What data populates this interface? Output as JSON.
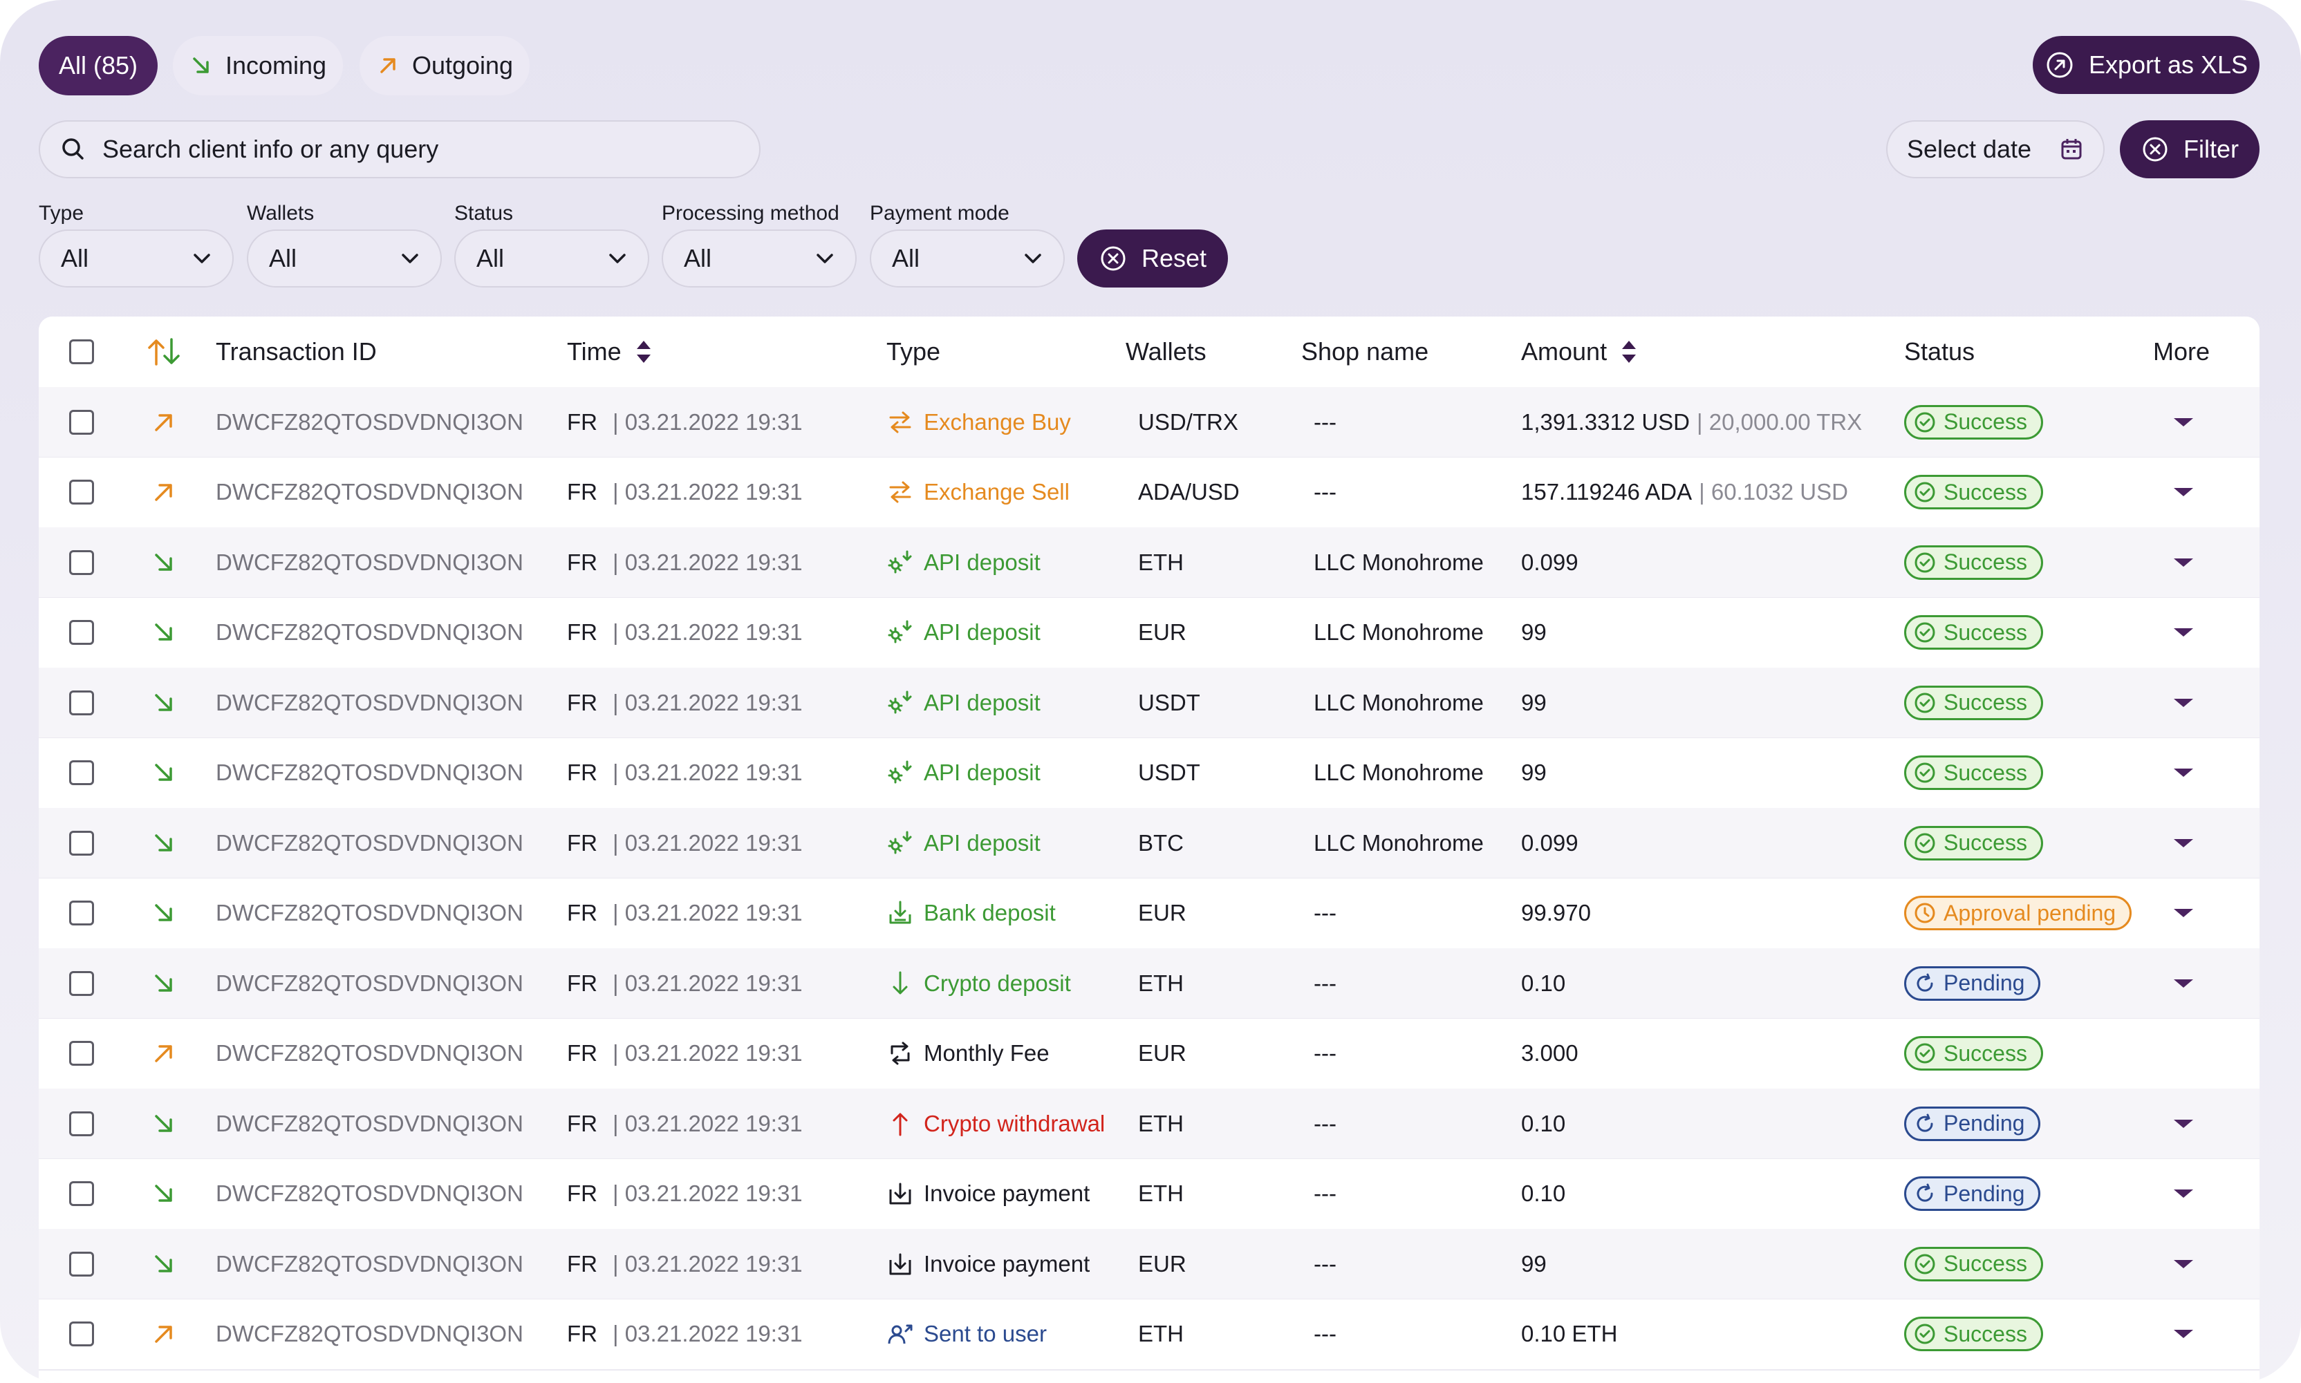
{
  "tabs": {
    "all": "All (85)",
    "incoming": "Incoming",
    "outgoing": "Outgoing"
  },
  "export_label": "Export as XLS",
  "search": {
    "placeholder": "Search client info or any query"
  },
  "date_label": "Select date",
  "filter_label": "Filter",
  "filters": [
    {
      "label": "Type",
      "value": "All"
    },
    {
      "label": "Wallets",
      "value": "All"
    },
    {
      "label": "Status",
      "value": "All"
    },
    {
      "label": "Processing method",
      "value": "All"
    },
    {
      "label": "Payment mode",
      "value": "All"
    }
  ],
  "reset_label": "Reset",
  "table": {
    "headers": {
      "transaction_id": "Transaction ID",
      "time": "Time",
      "type": "Type",
      "wallets": "Wallets",
      "shop_name": "Shop name",
      "amount": "Amount",
      "status": "Status",
      "more": "More"
    },
    "rows": [
      {
        "dir": "out",
        "txid": "DWCFZ82QTOSDVDNQI3ON",
        "country": "FR",
        "date": "| 03.21.2022 19:31",
        "type": "Exchange Buy",
        "type_icon": "exchange-icon",
        "type_color": "#e58a1f",
        "wallet": "USD/TRX",
        "shop": "---",
        "amount": "1,391.3312 USD",
        "amount_sec": "| 20,000.00 TRX",
        "status": "Success",
        "status_kind": "success",
        "more": true
      },
      {
        "dir": "out",
        "txid": "DWCFZ82QTOSDVDNQI3ON",
        "country": "FR",
        "date": "| 03.21.2022 19:31",
        "type": "Exchange Sell",
        "type_icon": "exchange-icon",
        "type_color": "#e58a1f",
        "wallet": "ADA/USD",
        "shop": "---",
        "amount": "157.119246  ADA",
        "amount_sec": "| 60.1032 USD",
        "status": "Success",
        "status_kind": "success",
        "more": true
      },
      {
        "dir": "in",
        "txid": "DWCFZ82QTOSDVDNQI3ON",
        "country": "FR",
        "date": "| 03.21.2022 19:31",
        "type": "API deposit",
        "type_icon": "api-deposit-icon",
        "type_color": "#3c9a34",
        "wallet": "ETH",
        "shop": "LLC Monohrome",
        "amount": "0.099",
        "amount_sec": "",
        "status": "Success",
        "status_kind": "success",
        "more": true
      },
      {
        "dir": "in",
        "txid": "DWCFZ82QTOSDVDNQI3ON",
        "country": "FR",
        "date": "| 03.21.2022 19:31",
        "type": "API deposit",
        "type_icon": "api-deposit-icon",
        "type_color": "#3c9a34",
        "wallet": "EUR",
        "shop": "LLC Monohrome",
        "amount": "99",
        "amount_sec": "",
        "status": "Success",
        "status_kind": "success",
        "more": true
      },
      {
        "dir": "in",
        "txid": "DWCFZ82QTOSDVDNQI3ON",
        "country": "FR",
        "date": "| 03.21.2022 19:31",
        "type": "API deposit",
        "type_icon": "api-deposit-icon",
        "type_color": "#3c9a34",
        "wallet": "USDT",
        "shop": "LLC Monohrome",
        "amount": "99",
        "amount_sec": "",
        "status": "Success",
        "status_kind": "success",
        "more": true
      },
      {
        "dir": "in",
        "txid": "DWCFZ82QTOSDVDNQI3ON",
        "country": "FR",
        "date": "| 03.21.2022 19:31",
        "type": "API deposit",
        "type_icon": "api-deposit-icon",
        "type_color": "#3c9a34",
        "wallet": "USDT",
        "shop": "LLC Monohrome",
        "amount": "99",
        "amount_sec": "",
        "status": "Success",
        "status_kind": "success",
        "more": true
      },
      {
        "dir": "in",
        "txid": "DWCFZ82QTOSDVDNQI3ON",
        "country": "FR",
        "date": "| 03.21.2022 19:31",
        "type": "API deposit",
        "type_icon": "api-deposit-icon",
        "type_color": "#3c9a34",
        "wallet": "BTC",
        "shop": "LLC Monohrome",
        "amount": "0.099",
        "amount_sec": "",
        "status": "Success",
        "status_kind": "success",
        "more": true
      },
      {
        "dir": "in",
        "txid": "DWCFZ82QTOSDVDNQI3ON",
        "country": "FR",
        "date": "| 03.21.2022 19:31",
        "type": "Bank deposit",
        "type_icon": "bank-deposit-icon",
        "type_color": "#3c9a34",
        "wallet": "EUR",
        "shop": "---",
        "amount": "99.970",
        "amount_sec": "",
        "status": "Approval pending",
        "status_kind": "approval",
        "more": true
      },
      {
        "dir": "in",
        "txid": "DWCFZ82QTOSDVDNQI3ON",
        "country": "FR",
        "date": "| 03.21.2022 19:31",
        "type": "Crypto deposit",
        "type_icon": "arrow-down-icon",
        "type_color": "#3c9a34",
        "wallet": "ETH",
        "shop": "---",
        "amount": "0.10",
        "amount_sec": "",
        "status": "Pending",
        "status_kind": "pending",
        "more": true
      },
      {
        "dir": "out",
        "txid": "DWCFZ82QTOSDVDNQI3ON",
        "country": "FR",
        "date": "| 03.21.2022 19:31",
        "type": "Monthly Fee",
        "type_icon": "repeat-icon",
        "type_color": "#1b1b23",
        "wallet": "EUR",
        "shop": "---",
        "amount": "3.000",
        "amount_sec": "",
        "status": "Success",
        "status_kind": "success",
        "more": false
      },
      {
        "dir": "in",
        "txid": "DWCFZ82QTOSDVDNQI3ON",
        "country": "FR",
        "date": "| 03.21.2022 19:31",
        "type": "Crypto withdrawal",
        "type_icon": "arrow-up-icon",
        "type_color": "#d2241c",
        "wallet": "ETH",
        "shop": "---",
        "amount": "0.10",
        "amount_sec": "",
        "status": "Pending",
        "status_kind": "pending",
        "more": true
      },
      {
        "dir": "in",
        "txid": "DWCFZ82QTOSDVDNQI3ON",
        "country": "FR",
        "date": "| 03.21.2022 19:31",
        "type": "Invoice payment",
        "type_icon": "invoice-icon",
        "type_color": "#1b1b23",
        "wallet": "ETH",
        "shop": "---",
        "amount": "0.10",
        "amount_sec": "",
        "status": "Pending",
        "status_kind": "pending",
        "more": true
      },
      {
        "dir": "in",
        "txid": "DWCFZ82QTOSDVDNQI3ON",
        "country": "FR",
        "date": "| 03.21.2022 19:31",
        "type": "Invoice payment",
        "type_icon": "invoice-icon",
        "type_color": "#1b1b23",
        "wallet": "EUR",
        "shop": "---",
        "amount": "99",
        "amount_sec": "",
        "status": "Success",
        "status_kind": "success",
        "more": true
      },
      {
        "dir": "out",
        "txid": "DWCFZ82QTOSDVDNQI3ON",
        "country": "FR",
        "date": "| 03.21.2022 19:31",
        "type": "Sent to user",
        "type_icon": "send-user-icon",
        "type_color": "#2b4a8f",
        "wallet": "ETH",
        "shop": "---",
        "amount": "0.10 ETH",
        "amount_sec": "",
        "status": "Success",
        "status_kind": "success",
        "more": true
      }
    ]
  }
}
